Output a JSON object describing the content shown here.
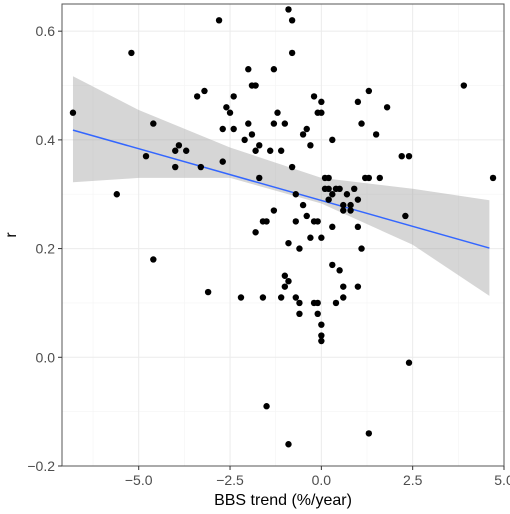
{
  "chart_data": {
    "type": "scatter",
    "title": "",
    "xlabel": "BBS trend (%/year)",
    "ylabel": "r",
    "xlim": [
      -7.1,
      5.0
    ],
    "ylim": [
      -0.2,
      0.65
    ],
    "x_ticks": [
      -5.0,
      -2.5,
      0.0,
      2.5,
      5.0
    ],
    "x_tick_labels": [
      "−5.0",
      "−2.5",
      "0.0",
      "2.5",
      "5.0"
    ],
    "y_ticks": [
      -0.2,
      0.0,
      0.2,
      0.4,
      0.6
    ],
    "y_tick_labels": [
      "−0.2",
      "0.0",
      "0.2",
      "0.4",
      "0.6"
    ],
    "grid": true,
    "legend": "none",
    "colors": {
      "panel_background": "#ffffff",
      "panel_border": "#555555",
      "grid_major": "#ebebeb",
      "grid_minor": "#f4f4f4",
      "points": "#000000",
      "fit_line": "#3366ff",
      "confidence_band": "#999999"
    },
    "points": [
      [
        -6.8,
        0.45
      ],
      [
        -5.6,
        0.3
      ],
      [
        -5.2,
        0.56
      ],
      [
        -4.8,
        0.37
      ],
      [
        -4.6,
        0.43
      ],
      [
        -4.6,
        0.18
      ],
      [
        -4.0,
        0.38
      ],
      [
        -4.0,
        0.35
      ],
      [
        -3.9,
        0.39
      ],
      [
        -3.7,
        0.38
      ],
      [
        -3.4,
        0.48
      ],
      [
        -3.3,
        0.35
      ],
      [
        -3.2,
        0.49
      ],
      [
        -3.1,
        0.12
      ],
      [
        -2.8,
        0.62
      ],
      [
        -2.7,
        0.36
      ],
      [
        -2.7,
        0.42
      ],
      [
        -2.6,
        0.46
      ],
      [
        -2.5,
        0.45
      ],
      [
        -2.4,
        0.42
      ],
      [
        -2.4,
        0.48
      ],
      [
        -2.2,
        0.11
      ],
      [
        -2.1,
        0.4
      ],
      [
        -2.0,
        0.53
      ],
      [
        -2.0,
        0.43
      ],
      [
        -1.9,
        0.5
      ],
      [
        -1.9,
        0.41
      ],
      [
        -1.8,
        0.38
      ],
      [
        -1.8,
        0.5
      ],
      [
        -1.8,
        0.23
      ],
      [
        -1.7,
        0.39
      ],
      [
        -1.7,
        0.33
      ],
      [
        -1.6,
        0.25
      ],
      [
        -1.6,
        0.11
      ],
      [
        -1.5,
        0.25
      ],
      [
        -1.5,
        -0.09
      ],
      [
        -1.4,
        0.38
      ],
      [
        -1.3,
        0.43
      ],
      [
        -1.3,
        0.27
      ],
      [
        -1.3,
        0.53
      ],
      [
        -1.2,
        0.45
      ],
      [
        -1.1,
        0.11
      ],
      [
        -1.1,
        0.38
      ],
      [
        -1.0,
        0.43
      ],
      [
        -1.0,
        0.15
      ],
      [
        -1.0,
        0.13
      ],
      [
        -0.9,
        0.21
      ],
      [
        -0.9,
        0.64
      ],
      [
        -0.9,
        0.14
      ],
      [
        -0.9,
        -0.16
      ],
      [
        -0.8,
        0.62
      ],
      [
        -0.8,
        0.56
      ],
      [
        -0.8,
        0.35
      ],
      [
        -0.7,
        0.3
      ],
      [
        -0.7,
        0.25
      ],
      [
        -0.7,
        0.11
      ],
      [
        -0.6,
        0.2
      ],
      [
        -0.6,
        0.1
      ],
      [
        -0.6,
        0.08
      ],
      [
        -0.5,
        0.41
      ],
      [
        -0.5,
        0.28
      ],
      [
        -0.4,
        0.42
      ],
      [
        -0.4,
        0.26
      ],
      [
        -0.3,
        0.39
      ],
      [
        -0.3,
        0.22
      ],
      [
        -0.2,
        0.48
      ],
      [
        -0.2,
        0.25
      ],
      [
        -0.2,
        0.1
      ],
      [
        -0.1,
        0.45
      ],
      [
        -0.1,
        0.25
      ],
      [
        -0.1,
        0.1
      ],
      [
        -0.1,
        0.08
      ],
      [
        0.0,
        0.47
      ],
      [
        0.0,
        0.45
      ],
      [
        0.0,
        0.22
      ],
      [
        0.0,
        0.06
      ],
      [
        0.0,
        0.04
      ],
      [
        0.0,
        0.03
      ],
      [
        0.1,
        0.33
      ],
      [
        0.1,
        0.31
      ],
      [
        0.2,
        0.33
      ],
      [
        0.2,
        0.31
      ],
      [
        0.2,
        0.29
      ],
      [
        0.3,
        0.4
      ],
      [
        0.3,
        0.3
      ],
      [
        0.3,
        0.24
      ],
      [
        0.3,
        0.17
      ],
      [
        0.4,
        0.31
      ],
      [
        0.4,
        0.1
      ],
      [
        0.5,
        0.31
      ],
      [
        0.5,
        0.16
      ],
      [
        0.6,
        0.28
      ],
      [
        0.6,
        0.27
      ],
      [
        0.6,
        0.13
      ],
      [
        0.6,
        0.11
      ],
      [
        0.7,
        0.3
      ],
      [
        0.8,
        0.28
      ],
      [
        0.8,
        0.27
      ],
      [
        0.9,
        0.31
      ],
      [
        1.0,
        0.29
      ],
      [
        1.0,
        0.24
      ],
      [
        1.0,
        0.13
      ],
      [
        1.0,
        0.47
      ],
      [
        1.1,
        0.43
      ],
      [
        1.1,
        0.2
      ],
      [
        1.2,
        0.33
      ],
      [
        1.3,
        0.33
      ],
      [
        1.3,
        0.49
      ],
      [
        1.3,
        -0.14
      ],
      [
        1.5,
        0.41
      ],
      [
        1.6,
        0.33
      ],
      [
        1.8,
        0.46
      ],
      [
        2.2,
        0.37
      ],
      [
        2.3,
        0.26
      ],
      [
        2.4,
        0.37
      ],
      [
        2.4,
        -0.01
      ],
      [
        3.9,
        0.5
      ],
      [
        4.7,
        0.33
      ]
    ],
    "fit": {
      "method": "linear regression",
      "x": [
        -6.8,
        4.6
      ],
      "y": [
        0.418,
        0.201
      ],
      "ci_x": [
        -6.8,
        -5.0,
        -2.5,
        0.0,
        2.5,
        4.6
      ],
      "ci_lower": [
        0.322,
        0.33,
        0.33,
        0.283,
        0.207,
        0.113
      ],
      "ci_upper": [
        0.517,
        0.455,
        0.386,
        0.33,
        0.31,
        0.289
      ]
    }
  }
}
